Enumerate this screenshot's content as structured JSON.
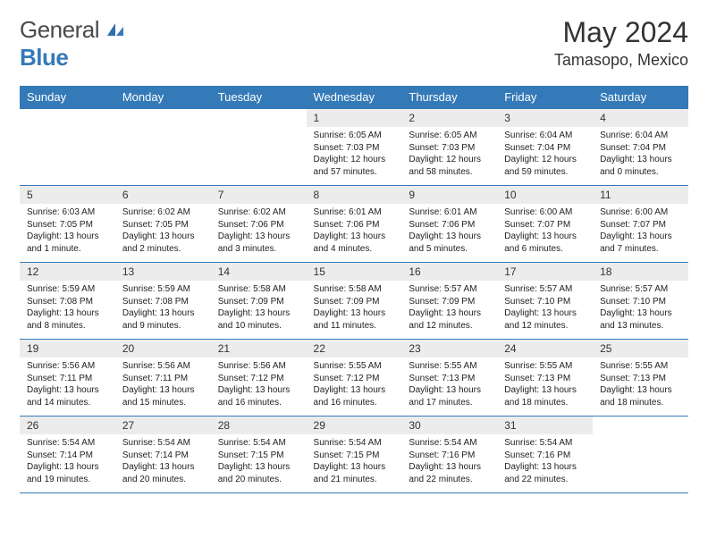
{
  "logo": {
    "textA": "General",
    "textB": "Blue"
  },
  "title": "May 2024",
  "location": "Tamasopo, Mexico",
  "colors": {
    "brand": "#357ab8",
    "dayNumBg": "#ececec",
    "text": "#1a1a1a",
    "border": "#357ab8"
  },
  "daysOfWeek": [
    "Sunday",
    "Monday",
    "Tuesday",
    "Wednesday",
    "Thursday",
    "Friday",
    "Saturday"
  ],
  "weeks": [
    [
      null,
      null,
      null,
      {
        "n": "1",
        "sr": "6:05 AM",
        "ss": "7:03 PM",
        "dl": "12 hours and 57 minutes."
      },
      {
        "n": "2",
        "sr": "6:05 AM",
        "ss": "7:03 PM",
        "dl": "12 hours and 58 minutes."
      },
      {
        "n": "3",
        "sr": "6:04 AM",
        "ss": "7:04 PM",
        "dl": "12 hours and 59 minutes."
      },
      {
        "n": "4",
        "sr": "6:04 AM",
        "ss": "7:04 PM",
        "dl": "13 hours and 0 minutes."
      }
    ],
    [
      {
        "n": "5",
        "sr": "6:03 AM",
        "ss": "7:05 PM",
        "dl": "13 hours and 1 minute."
      },
      {
        "n": "6",
        "sr": "6:02 AM",
        "ss": "7:05 PM",
        "dl": "13 hours and 2 minutes."
      },
      {
        "n": "7",
        "sr": "6:02 AM",
        "ss": "7:06 PM",
        "dl": "13 hours and 3 minutes."
      },
      {
        "n": "8",
        "sr": "6:01 AM",
        "ss": "7:06 PM",
        "dl": "13 hours and 4 minutes."
      },
      {
        "n": "9",
        "sr": "6:01 AM",
        "ss": "7:06 PM",
        "dl": "13 hours and 5 minutes."
      },
      {
        "n": "10",
        "sr": "6:00 AM",
        "ss": "7:07 PM",
        "dl": "13 hours and 6 minutes."
      },
      {
        "n": "11",
        "sr": "6:00 AM",
        "ss": "7:07 PM",
        "dl": "13 hours and 7 minutes."
      }
    ],
    [
      {
        "n": "12",
        "sr": "5:59 AM",
        "ss": "7:08 PM",
        "dl": "13 hours and 8 minutes."
      },
      {
        "n": "13",
        "sr": "5:59 AM",
        "ss": "7:08 PM",
        "dl": "13 hours and 9 minutes."
      },
      {
        "n": "14",
        "sr": "5:58 AM",
        "ss": "7:09 PM",
        "dl": "13 hours and 10 minutes."
      },
      {
        "n": "15",
        "sr": "5:58 AM",
        "ss": "7:09 PM",
        "dl": "13 hours and 11 minutes."
      },
      {
        "n": "16",
        "sr": "5:57 AM",
        "ss": "7:09 PM",
        "dl": "13 hours and 12 minutes."
      },
      {
        "n": "17",
        "sr": "5:57 AM",
        "ss": "7:10 PM",
        "dl": "13 hours and 12 minutes."
      },
      {
        "n": "18",
        "sr": "5:57 AM",
        "ss": "7:10 PM",
        "dl": "13 hours and 13 minutes."
      }
    ],
    [
      {
        "n": "19",
        "sr": "5:56 AM",
        "ss": "7:11 PM",
        "dl": "13 hours and 14 minutes."
      },
      {
        "n": "20",
        "sr": "5:56 AM",
        "ss": "7:11 PM",
        "dl": "13 hours and 15 minutes."
      },
      {
        "n": "21",
        "sr": "5:56 AM",
        "ss": "7:12 PM",
        "dl": "13 hours and 16 minutes."
      },
      {
        "n": "22",
        "sr": "5:55 AM",
        "ss": "7:12 PM",
        "dl": "13 hours and 16 minutes."
      },
      {
        "n": "23",
        "sr": "5:55 AM",
        "ss": "7:13 PM",
        "dl": "13 hours and 17 minutes."
      },
      {
        "n": "24",
        "sr": "5:55 AM",
        "ss": "7:13 PM",
        "dl": "13 hours and 18 minutes."
      },
      {
        "n": "25",
        "sr": "5:55 AM",
        "ss": "7:13 PM",
        "dl": "13 hours and 18 minutes."
      }
    ],
    [
      {
        "n": "26",
        "sr": "5:54 AM",
        "ss": "7:14 PM",
        "dl": "13 hours and 19 minutes."
      },
      {
        "n": "27",
        "sr": "5:54 AM",
        "ss": "7:14 PM",
        "dl": "13 hours and 20 minutes."
      },
      {
        "n": "28",
        "sr": "5:54 AM",
        "ss": "7:15 PM",
        "dl": "13 hours and 20 minutes."
      },
      {
        "n": "29",
        "sr": "5:54 AM",
        "ss": "7:15 PM",
        "dl": "13 hours and 21 minutes."
      },
      {
        "n": "30",
        "sr": "5:54 AM",
        "ss": "7:16 PM",
        "dl": "13 hours and 22 minutes."
      },
      {
        "n": "31",
        "sr": "5:54 AM",
        "ss": "7:16 PM",
        "dl": "13 hours and 22 minutes."
      },
      null
    ]
  ],
  "labels": {
    "sunrise": "Sunrise:",
    "sunset": "Sunset:",
    "daylight": "Daylight:"
  }
}
